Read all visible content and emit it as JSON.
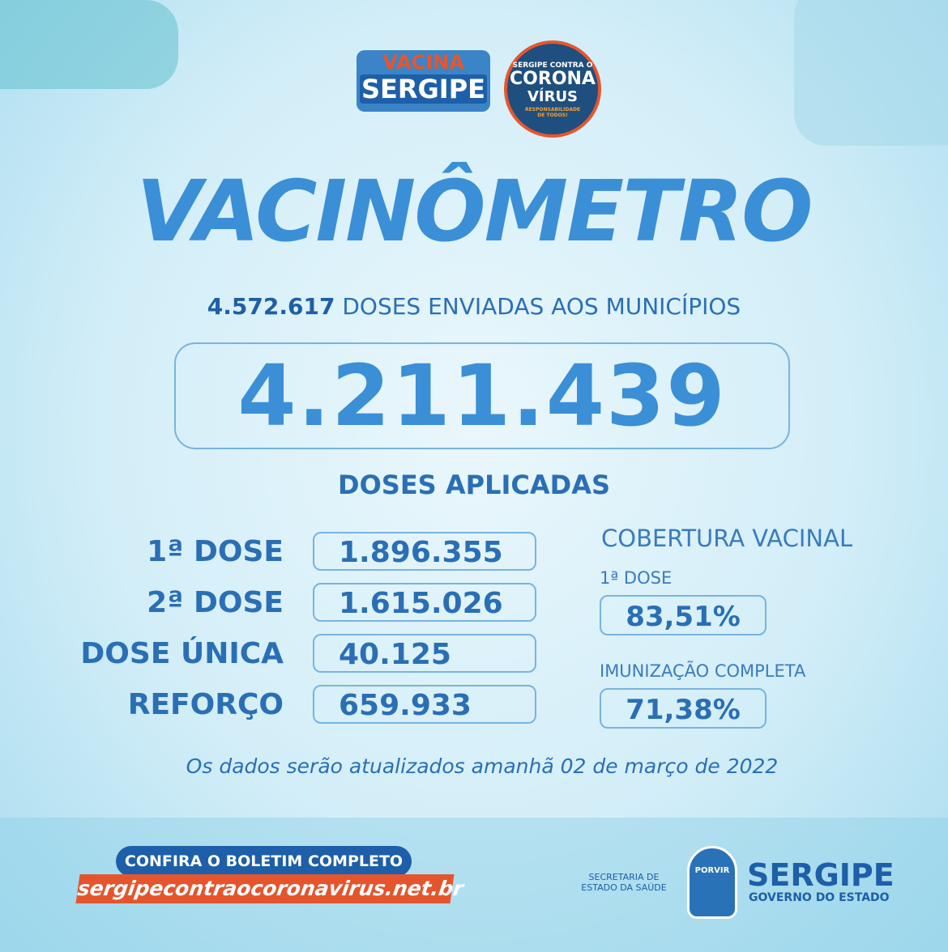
{
  "logos": {
    "vacina": {
      "line1": "VACINA",
      "line2": "SERGIPE"
    },
    "corona": {
      "line1": "SERGIPE CONTRA O",
      "line2": "CORONA",
      "line3": "VÍRUS",
      "line4": "RESPONSABILIDADE DE TODOS!"
    }
  },
  "header": {
    "title": "VACINÔMETRO"
  },
  "sent": {
    "number": "4.572.617",
    "label": "DOSES ENVIADAS AOS MUNICÍPIOS"
  },
  "total": {
    "number": "4.211.439",
    "label": "DOSES APLICADAS"
  },
  "doses": {
    "rows": [
      [
        "1ª DOSE",
        "1.896.355"
      ],
      [
        "2ª DOSE",
        "1.615.026"
      ],
      [
        "DOSE ÚNICA",
        "40.125"
      ],
      [
        "REFORÇO",
        "659.933"
      ]
    ]
  },
  "coverage": {
    "title": "COBERTURA VACINAL",
    "items": [
      {
        "label": "1ª DOSE",
        "value": "83,51%"
      },
      {
        "label": "IMUNIZAÇÃO COMPLETA",
        "value": "71,38%"
      }
    ]
  },
  "note": "Os dados serão atualizados amanhã 02 de março de 2022",
  "footer": {
    "cta": "CONFIRA O BOLETIM COMPLETO",
    "url": "sergipecontraocoronavirus.net.br",
    "secretaria": "SECRETARIA DE ESTADO DA SAÚDE",
    "emblem": "PORVIR",
    "state": "SERGIPE",
    "gov": "GOVERNO DO ESTADO"
  }
}
